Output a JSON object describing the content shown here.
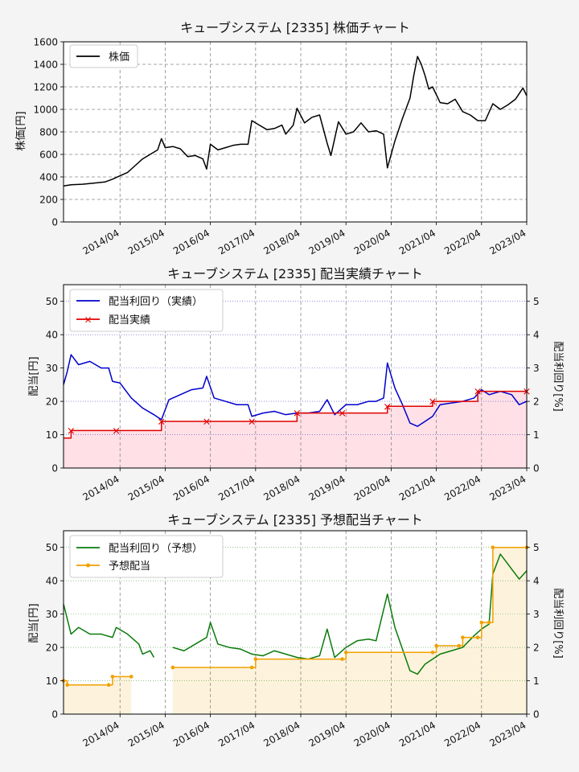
{
  "chart_data": [
    {
      "type": "line",
      "title": "キューブシステム [2335]  株価チャート",
      "ylabel": "株価[円]",
      "xlabel": "",
      "x_ticks": [
        "2014/04",
        "2015/04",
        "2016/04",
        "2017/04",
        "2018/04",
        "2019/04",
        "2020/04",
        "2021/04",
        "2022/04",
        "2023/04"
      ],
      "xlim": [
        "2013/01",
        "2023/04"
      ],
      "ylim": [
        0,
        1600
      ],
      "y_ticks": [
        0,
        200,
        400,
        600,
        800,
        1000,
        1200,
        1400,
        1600
      ],
      "grid": true,
      "legend": "upper-left",
      "colors": {
        "price": "#000000"
      },
      "series": [
        {
          "name": "株価",
          "points": [
            [
              "2013/01",
              320
            ],
            [
              "2013/03",
              330
            ],
            [
              "2013/06",
              335
            ],
            [
              "2013/09",
              345
            ],
            [
              "2013/12",
              355
            ],
            [
              "2014/02",
              380
            ],
            [
              "2014/04",
              410
            ],
            [
              "2014/06",
              440
            ],
            [
              "2014/08",
              500
            ],
            [
              "2014/10",
              560
            ],
            [
              "2014/12",
              600
            ],
            [
              "2015/02",
              640
            ],
            [
              "2015/03",
              740
            ],
            [
              "2015/04",
              660
            ],
            [
              "2015/06",
              670
            ],
            [
              "2015/08",
              650
            ],
            [
              "2015/10",
              580
            ],
            [
              "2015/12",
              590
            ],
            [
              "2016/02",
              560
            ],
            [
              "2016/03",
              470
            ],
            [
              "2016/04",
              690
            ],
            [
              "2016/06",
              640
            ],
            [
              "2016/08",
              660
            ],
            [
              "2016/10",
              680
            ],
            [
              "2016/12",
              690
            ],
            [
              "2017/02",
              690
            ],
            [
              "2017/03",
              900
            ],
            [
              "2017/05",
              860
            ],
            [
              "2017/07",
              820
            ],
            [
              "2017/09",
              830
            ],
            [
              "2017/11",
              860
            ],
            [
              "2017/12",
              780
            ],
            [
              "2018/02",
              860
            ],
            [
              "2018/03",
              1010
            ],
            [
              "2018/05",
              880
            ],
            [
              "2018/07",
              930
            ],
            [
              "2018/09",
              950
            ],
            [
              "2018/11",
              700
            ],
            [
              "2018/12",
              590
            ],
            [
              "2019/02",
              890
            ],
            [
              "2019/04",
              780
            ],
            [
              "2019/06",
              800
            ],
            [
              "2019/08",
              880
            ],
            [
              "2019/10",
              800
            ],
            [
              "2019/12",
              810
            ],
            [
              "2020/02",
              780
            ],
            [
              "2020/03",
              480
            ],
            [
              "2020/05",
              720
            ],
            [
              "2020/07",
              920
            ],
            [
              "2020/09",
              1100
            ],
            [
              "2020/10",
              1300
            ],
            [
              "2020/11",
              1470
            ],
            [
              "2020/12",
              1400
            ],
            [
              "2021/01",
              1300
            ],
            [
              "2021/02",
              1180
            ],
            [
              "2021/03",
              1200
            ],
            [
              "2021/05",
              1060
            ],
            [
              "2021/07",
              1050
            ],
            [
              "2021/09",
              1090
            ],
            [
              "2021/11",
              980
            ],
            [
              "2022/01",
              950
            ],
            [
              "2022/03",
              900
            ],
            [
              "2022/05",
              900
            ],
            [
              "2022/07",
              1050
            ],
            [
              "2022/09",
              1000
            ],
            [
              "2022/11",
              1040
            ],
            [
              "2023/01",
              1090
            ],
            [
              "2023/03",
              1190
            ],
            [
              "2023/04",
              1120
            ]
          ]
        }
      ]
    },
    {
      "type": "line",
      "title": "キューブシステム [2335]  配当実績チャート",
      "ylabel": "配当[円]",
      "ylabel_right": "配当利回り[%]",
      "xlabel": "",
      "x_ticks": [
        "2014/04",
        "2015/04",
        "2016/04",
        "2017/04",
        "2018/04",
        "2019/04",
        "2020/04",
        "2021/04",
        "2022/04",
        "2023/04"
      ],
      "xlim": [
        "2013/01",
        "2023/04"
      ],
      "ylim": [
        0,
        55
      ],
      "y_ticks": [
        0,
        10,
        20,
        30,
        40,
        50
      ],
      "ylim_right": [
        0,
        5.5
      ],
      "y_ticks_right": [
        0,
        1,
        2,
        3,
        4,
        5
      ],
      "grid": true,
      "legend": "upper-left",
      "colors": {
        "yield": "#0000cc",
        "dividend": "#e00000",
        "fill": "#ffe0e6"
      },
      "series": [
        {
          "name": "配当利回り（実績）",
          "axis": "right",
          "points": [
            [
              "2013/01",
              2.5
            ],
            [
              "2013/02",
              2.9
            ],
            [
              "2013/03",
              3.4
            ],
            [
              "2013/05",
              3.1
            ],
            [
              "2013/08",
              3.2
            ],
            [
              "2013/11",
              3.0
            ],
            [
              "2014/01",
              3.0
            ],
            [
              "2014/02",
              2.6
            ],
            [
              "2014/04",
              2.55
            ],
            [
              "2014/07",
              2.1
            ],
            [
              "2014/10",
              1.8
            ],
            [
              "2015/01",
              1.6
            ],
            [
              "2015/03",
              1.45
            ],
            [
              "2015/05",
              2.05
            ],
            [
              "2015/08",
              2.2
            ],
            [
              "2015/11",
              2.35
            ],
            [
              "2016/02",
              2.4
            ],
            [
              "2016/03",
              2.75
            ],
            [
              "2016/05",
              2.1
            ],
            [
              "2016/08",
              2.0
            ],
            [
              "2016/11",
              1.9
            ],
            [
              "2017/02",
              1.9
            ],
            [
              "2017/03",
              1.55
            ],
            [
              "2017/06",
              1.65
            ],
            [
              "2017/09",
              1.7
            ],
            [
              "2017/12",
              1.6
            ],
            [
              "2018/03",
              1.65
            ],
            [
              "2018/06",
              1.65
            ],
            [
              "2018/09",
              1.7
            ],
            [
              "2018/11",
              2.05
            ],
            [
              "2019/01",
              1.6
            ],
            [
              "2019/04",
              1.9
            ],
            [
              "2019/07",
              1.9
            ],
            [
              "2019/10",
              2.0
            ],
            [
              "2019/12",
              2.0
            ],
            [
              "2020/02",
              2.1
            ],
            [
              "2020/03",
              3.15
            ],
            [
              "2020/05",
              2.4
            ],
            [
              "2020/07",
              1.9
            ],
            [
              "2020/09",
              1.35
            ],
            [
              "2020/11",
              1.25
            ],
            [
              "2021/01",
              1.4
            ],
            [
              "2021/03",
              1.55
            ],
            [
              "2021/05",
              1.9
            ],
            [
              "2021/08",
              1.95
            ],
            [
              "2021/11",
              2.0
            ],
            [
              "2022/02",
              2.1
            ],
            [
              "2022/04",
              2.35
            ],
            [
              "2022/06",
              2.2
            ],
            [
              "2022/09",
              2.3
            ],
            [
              "2022/12",
              2.2
            ],
            [
              "2023/02",
              1.9
            ],
            [
              "2023/04",
              2.0
            ]
          ]
        },
        {
          "name": "配当実績",
          "axis": "left",
          "step": true,
          "points": [
            [
              "2013/01",
              9
            ],
            [
              "2013/03",
              11.25
            ],
            [
              "2014/03",
              11.25
            ],
            [
              "2015/03",
              14
            ],
            [
              "2016/03",
              14
            ],
            [
              "2017/03",
              14
            ],
            [
              "2018/03",
              16.5
            ],
            [
              "2019/03",
              16.5
            ],
            [
              "2020/03",
              18.5
            ],
            [
              "2021/03",
              20
            ],
            [
              "2022/03",
              23
            ],
            [
              "2023/04",
              23
            ]
          ],
          "markers": [
            "2013/03",
            "2014/03",
            "2015/03",
            "2016/03",
            "2017/03",
            "2018/03",
            "2019/03",
            "2020/03",
            "2021/03",
            "2022/03",
            "2023/04"
          ]
        }
      ]
    },
    {
      "type": "line",
      "title": "キューブシステム [2335]  予想配当チャート",
      "ylabel": "配当[円]",
      "ylabel_right": "配当利回り[%]",
      "xlabel": "",
      "x_ticks": [
        "2014/04",
        "2015/04",
        "2016/04",
        "2017/04",
        "2018/04",
        "2019/04",
        "2020/04",
        "2021/04",
        "2022/04",
        "2023/04"
      ],
      "xlim": [
        "2013/01",
        "2023/04"
      ],
      "ylim": [
        0,
        55
      ],
      "y_ticks": [
        0,
        10,
        20,
        30,
        40,
        50
      ],
      "ylim_right": [
        0,
        5.5
      ],
      "y_ticks_right": [
        0,
        1,
        2,
        3,
        4,
        5
      ],
      "grid": true,
      "legend": "upper-left",
      "colors": {
        "yield": "#0a7a0a",
        "dividend": "#f0a000",
        "fill": "#fdf3dc"
      },
      "series": [
        {
          "name": "配当利回り（予想）",
          "axis": "right",
          "segments": [
            [
              [
                "2013/01",
                3.3
              ],
              [
                "2013/03",
                2.4
              ],
              [
                "2013/05",
                2.6
              ],
              [
                "2013/08",
                2.4
              ],
              [
                "2013/11",
                2.4
              ],
              [
                "2014/02",
                2.3
              ],
              [
                "2014/03",
                2.6
              ],
              [
                "2014/06",
                2.4
              ],
              [
                "2014/09",
                2.1
              ],
              [
                "2014/10",
                1.8
              ],
              [
                "2014/12",
                1.9
              ],
              [
                "2015/01",
                1.7
              ]
            ],
            [
              [
                "2015/06",
                2.0
              ],
              [
                "2015/09",
                1.9
              ],
              [
                "2015/12",
                2.1
              ],
              [
                "2016/03",
                2.3
              ],
              [
                "2016/04",
                2.75
              ],
              [
                "2016/06",
                2.1
              ],
              [
                "2016/09",
                2.0
              ],
              [
                "2016/12",
                1.95
              ],
              [
                "2017/03",
                1.8
              ],
              [
                "2017/06",
                1.75
              ],
              [
                "2017/09",
                1.9
              ],
              [
                "2017/12",
                1.8
              ],
              [
                "2018/03",
                1.7
              ],
              [
                "2018/06",
                1.65
              ],
              [
                "2018/09",
                1.75
              ],
              [
                "2018/11",
                2.55
              ],
              [
                "2019/01",
                1.7
              ],
              [
                "2019/04",
                2.0
              ],
              [
                "2019/07",
                2.2
              ],
              [
                "2019/10",
                2.25
              ],
              [
                "2019/12",
                2.2
              ],
              [
                "2020/03",
                3.6
              ],
              [
                "2020/05",
                2.6
              ],
              [
                "2020/07",
                1.95
              ],
              [
                "2020/09",
                1.3
              ],
              [
                "2020/11",
                1.2
              ],
              [
                "2021/01",
                1.5
              ],
              [
                "2021/03",
                1.65
              ],
              [
                "2021/05",
                1.8
              ],
              [
                "2021/08",
                1.9
              ],
              [
                "2021/11",
                2.0
              ],
              [
                "2022/02",
                2.35
              ],
              [
                "2022/04",
                2.55
              ],
              [
                "2022/06",
                2.7
              ],
              [
                "2022/07",
                4.2
              ],
              [
                "2022/09",
                4.8
              ],
              [
                "2022/11",
                4.5
              ],
              [
                "2023/02",
                4.05
              ],
              [
                "2023/04",
                4.3
              ]
            ]
          ]
        },
        {
          "name": "予想配当",
          "axis": "left",
          "step": true,
          "segments": [
            [
              [
                "2013/01",
                10
              ],
              [
                "2013/02",
                8.75
              ],
              [
                "2014/01",
                8.75
              ],
              [
                "2014/02",
                11.25
              ],
              [
                "2014/07",
                11.25
              ]
            ],
            [
              [
                "2015/06",
                14
              ],
              [
                "2017/03",
                14
              ],
              [
                "2017/04",
                16.5
              ],
              [
                "2019/03",
                16.5
              ],
              [
                "2019/04",
                18.5
              ],
              [
                "2021/03",
                18.5
              ],
              [
                "2021/04",
                20.5
              ],
              [
                "2021/10",
                20.5
              ],
              [
                "2021/11",
                23
              ],
              [
                "2022/03",
                23
              ],
              [
                "2022/04",
                27.5
              ],
              [
                "2022/06",
                27.5
              ],
              [
                "2022/07",
                50
              ],
              [
                "2023/04",
                50
              ]
            ]
          ]
        }
      ]
    }
  ]
}
